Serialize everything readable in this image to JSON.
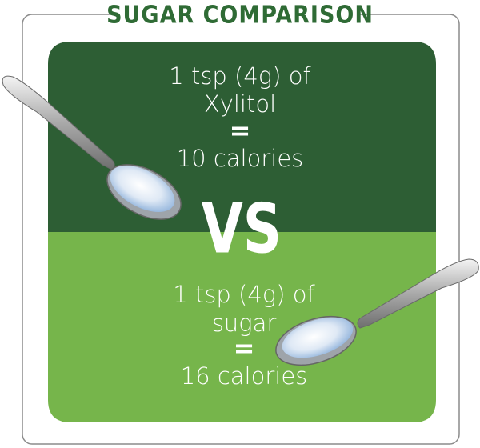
{
  "header": {
    "title": "SUGAR COMPARISON"
  },
  "top_panel": {
    "lines": [
      "1 tsp (4g) of",
      "Xylitol",
      "=",
      "10 calories"
    ]
  },
  "divider": {
    "label": "VS"
  },
  "bottom_panel": {
    "lines": [
      "1 tsp (4g) of",
      "sugar",
      "=",
      "16 calories"
    ]
  }
}
